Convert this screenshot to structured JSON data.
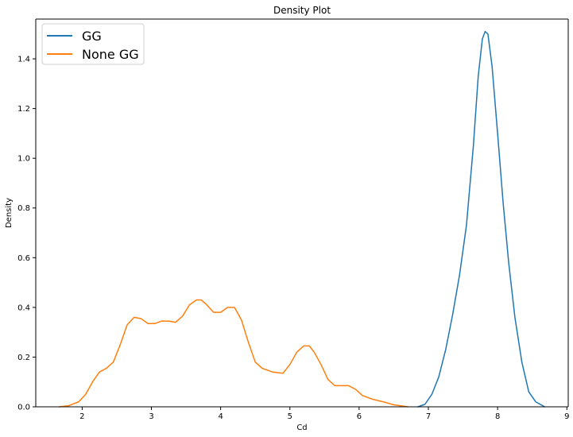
{
  "chart_data": {
    "type": "line",
    "title": "Density Plot",
    "xlabel": "Cd",
    "ylabel": "Density",
    "xlim": [
      1.33,
      9.02
    ],
    "ylim": [
      0,
      1.56
    ],
    "x_ticks": [
      2,
      3,
      4,
      5,
      6,
      7,
      8,
      9
    ],
    "y_ticks": [
      0.0,
      0.2,
      0.4,
      0.6,
      0.8,
      1.0,
      1.2,
      1.4
    ],
    "grid": false,
    "legend_position": "top-left",
    "series": [
      {
        "name": "GG",
        "color": "#1f77b4",
        "x": [
          6.85,
          6.95,
          7.05,
          7.15,
          7.25,
          7.35,
          7.45,
          7.55,
          7.65,
          7.72,
          7.78,
          7.82,
          7.86,
          7.92,
          8.0,
          8.08,
          8.16,
          8.25,
          8.35,
          8.45,
          8.55,
          8.68
        ],
        "y": [
          0.0,
          0.01,
          0.05,
          0.12,
          0.23,
          0.37,
          0.53,
          0.73,
          1.05,
          1.33,
          1.48,
          1.51,
          1.5,
          1.37,
          1.1,
          0.82,
          0.58,
          0.36,
          0.18,
          0.06,
          0.02,
          0.0
        ]
      },
      {
        "name": "None GG",
        "color": "#ff7f0e",
        "x": [
          1.67,
          1.8,
          1.95,
          2.05,
          2.15,
          2.25,
          2.35,
          2.45,
          2.55,
          2.65,
          2.75,
          2.85,
          2.95,
          3.05,
          3.15,
          3.25,
          3.35,
          3.45,
          3.55,
          3.65,
          3.72,
          3.8,
          3.9,
          4.0,
          4.1,
          4.2,
          4.3,
          4.4,
          4.5,
          4.6,
          4.75,
          4.9,
          5.0,
          5.1,
          5.2,
          5.28,
          5.35,
          5.45,
          5.55,
          5.65,
          5.75,
          5.85,
          5.95,
          6.05,
          6.2,
          6.35,
          6.5,
          6.7
        ],
        "y": [
          0.0,
          0.004,
          0.02,
          0.05,
          0.1,
          0.14,
          0.155,
          0.18,
          0.25,
          0.33,
          0.36,
          0.355,
          0.335,
          0.335,
          0.345,
          0.345,
          0.34,
          0.365,
          0.41,
          0.43,
          0.43,
          0.41,
          0.38,
          0.38,
          0.4,
          0.4,
          0.35,
          0.26,
          0.18,
          0.155,
          0.14,
          0.135,
          0.17,
          0.22,
          0.245,
          0.245,
          0.22,
          0.17,
          0.11,
          0.085,
          0.085,
          0.085,
          0.07,
          0.045,
          0.03,
          0.02,
          0.008,
          0.0
        ]
      }
    ]
  }
}
